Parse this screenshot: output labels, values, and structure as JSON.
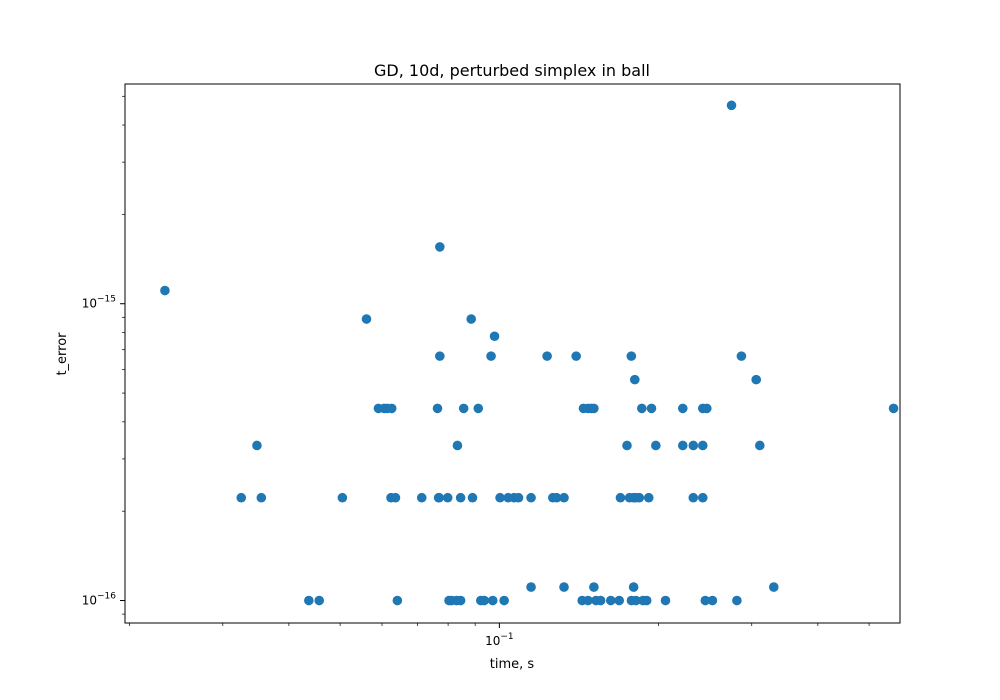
{
  "chart_data": {
    "type": "scatter",
    "title": "GD, 10d, perturbed simplex in ball",
    "xlabel": "time, s",
    "ylabel": "t_error",
    "xscale": "log",
    "yscale": "log",
    "xlim": [
      0.0196,
      0.572
    ],
    "ylim": [
      8.4e-17,
      5.5e-15
    ],
    "x_tick_labels": [
      {
        "value": 0.1,
        "base": "10",
        "exp": "−1"
      }
    ],
    "y_tick_labels": [
      {
        "value": 1e-16,
        "base": "10",
        "exp": "−16"
      },
      {
        "value": 1e-15,
        "base": "10",
        "exp": "−15"
      }
    ],
    "marker_color": "#1f77b4",
    "points": [
      [
        0.02332,
        1.108e-15
      ],
      [
        0.03251,
        2.22e-16
      ],
      [
        0.03548,
        2.22e-16
      ],
      [
        0.05049,
        2.22e-16
      ],
      [
        0.07133,
        2.22e-16
      ],
      [
        0.07676,
        2.22e-16
      ],
      [
        0.07695,
        2.22e-16
      ],
      [
        0.07987,
        2.22e-16
      ],
      [
        0.08448,
        2.22e-16
      ],
      [
        0.08896,
        2.22e-16
      ],
      [
        0.1003,
        2.22e-16
      ],
      [
        0.1039,
        2.22e-16
      ],
      [
        0.1066,
        2.22e-16
      ],
      [
        0.1087,
        2.22e-16
      ],
      [
        0.1148,
        2.22e-16
      ],
      [
        0.1262,
        2.22e-16
      ],
      [
        0.1283,
        2.22e-16
      ],
      [
        0.1325,
        2.22e-16
      ],
      [
        0.1694,
        2.22e-16
      ],
      [
        0.1762,
        2.22e-16
      ],
      [
        0.1792,
        2.22e-16
      ],
      [
        0.1812,
        2.22e-16
      ],
      [
        0.1839,
        2.22e-16
      ],
      [
        0.1916,
        2.22e-16
      ],
      [
        0.2326,
        2.22e-16
      ],
      [
        0.2424,
        2.22e-16
      ],
      [
        0.06239,
        2.22e-16
      ],
      [
        0.06362,
        2.22e-16
      ],
      [
        0.03481,
        3.33e-16
      ],
      [
        0.08332,
        3.33e-16
      ],
      [
        0.1743,
        3.33e-16
      ],
      [
        0.1976,
        3.33e-16
      ],
      [
        0.2222,
        3.33e-16
      ],
      [
        0.2326,
        3.33e-16
      ],
      [
        0.2424,
        3.33e-16
      ],
      [
        0.3107,
        3.33e-16
      ],
      [
        0.05907,
        4.44e-16
      ],
      [
        0.06058,
        4.44e-16
      ],
      [
        0.06137,
        4.44e-16
      ],
      [
        0.06259,
        4.44e-16
      ],
      [
        0.07639,
        4.44e-16
      ],
      [
        0.08561,
        4.44e-16
      ],
      [
        0.09122,
        4.44e-16
      ],
      [
        0.1442,
        4.44e-16
      ],
      [
        0.1471,
        4.44e-16
      ],
      [
        0.1492,
        4.44e-16
      ],
      [
        0.1509,
        4.44e-16
      ],
      [
        0.1859,
        4.44e-16
      ],
      [
        0.1939,
        4.44e-16
      ],
      [
        0.2222,
        4.44e-16
      ],
      [
        0.2424,
        4.44e-16
      ],
      [
        0.2467,
        4.44e-16
      ],
      [
        0.5562,
        4.44e-16
      ],
      [
        0.1803,
        5.55e-16
      ],
      [
        0.3059,
        5.55e-16
      ],
      [
        0.07717,
        6.66e-16
      ],
      [
        0.09645,
        6.66e-16
      ],
      [
        0.1231,
        6.66e-16
      ],
      [
        0.1397,
        6.66e-16
      ],
      [
        0.1776,
        6.66e-16
      ],
      [
        0.2868,
        6.66e-16
      ],
      [
        0.09791,
        7.77e-16
      ],
      [
        0.05608,
        8.88e-16
      ],
      [
        0.08846,
        8.88e-16
      ],
      [
        0.07717,
        1.554e-15
      ],
      [
        0.2747,
        4.66e-15
      ],
      [
        0.1148,
        1.11e-16
      ],
      [
        0.1325,
        1.11e-16
      ],
      [
        0.1509,
        1.11e-16
      ],
      [
        0.1794,
        1.11e-16
      ],
      [
        0.3302,
        1.11e-16
      ],
      [
        0.04363,
        1e-16
      ],
      [
        0.04565,
        1e-16
      ],
      [
        0.06414,
        1e-16
      ],
      [
        0.08032,
        1e-16
      ],
      [
        0.08123,
        1e-16
      ],
      [
        0.08298,
        1e-16
      ],
      [
        0.08448,
        1e-16
      ],
      [
        0.09223,
        1e-16
      ],
      [
        0.09363,
        1e-16
      ],
      [
        0.09716,
        1e-16
      ],
      [
        0.1021,
        1e-16
      ],
      [
        0.1434,
        1e-16
      ],
      [
        0.1471,
        1e-16
      ],
      [
        0.1523,
        1e-16
      ],
      [
        0.1554,
        1e-16
      ],
      [
        0.1624,
        1e-16
      ],
      [
        0.1685,
        1e-16
      ],
      [
        0.1777,
        1e-16
      ],
      [
        0.1812,
        1e-16
      ],
      [
        0.1869,
        1e-16
      ],
      [
        0.1899,
        1e-16
      ],
      [
        0.2061,
        1e-16
      ],
      [
        0.2451,
        1e-16
      ],
      [
        0.2528,
        1e-16
      ],
      [
        0.2812,
        1e-16
      ]
    ]
  }
}
